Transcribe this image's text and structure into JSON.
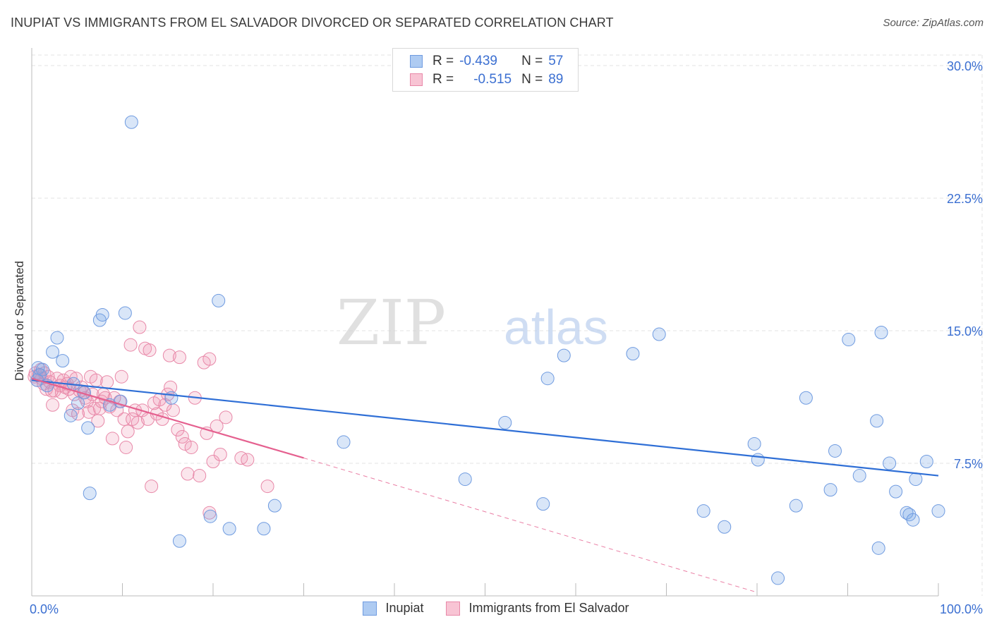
{
  "header": {
    "title": "INUPIAT VS IMMIGRANTS FROM EL SALVADOR DIVORCED OR SEPARATED CORRELATION CHART",
    "source": "Source: ZipAtlas.com"
  },
  "watermark": {
    "zip": "ZIP",
    "atlas": "atlas"
  },
  "legend": {
    "r_label": "R =",
    "n_label": "N =",
    "rows": [
      {
        "series": "Inupiat",
        "r": "-0.439",
        "n": "57",
        "fill": "#aecbf2",
        "stroke": "#6f9be0"
      },
      {
        "series": "Immigrants from El Salvador",
        "r": "-0.515",
        "n": "89",
        "fill": "#f8c4d4",
        "stroke": "#e888a8"
      }
    ]
  },
  "colors": {
    "blue_point_fill": "rgba(120,165,230,0.28)",
    "blue_point_stroke": "#6f9be0",
    "blue_line": "#2f6fd6",
    "pink_point_fill": "rgba(240,150,180,0.25)",
    "pink_point_stroke": "#e888a8",
    "pink_line": "#e5608f",
    "grid": "#e3e3e3",
    "tick_text": "#3b6fd1"
  },
  "chart_data": {
    "type": "scatter",
    "title": "INUPIAT VS IMMIGRANTS FROM EL SALVADOR DIVORCED OR SEPARATED CORRELATION CHART",
    "xlabel": "",
    "ylabel": "Divorced or Separated",
    "xlim": [
      0,
      100
    ],
    "ylim": [
      0,
      30.6
    ],
    "x_tick_labels": [
      "0.0%",
      "100.0%"
    ],
    "y_ticks": [
      7.5,
      15.0,
      22.5,
      30.0
    ],
    "y_tick_labels": [
      "7.5%",
      "15.0%",
      "22.5%",
      "30.0%"
    ],
    "grid": true,
    "legend_position": "top-center",
    "series": [
      {
        "name": "Inupiat",
        "points": [
          [
            0.6,
            12.2
          ],
          [
            0.7,
            12.9
          ],
          [
            1.2,
            12.8
          ],
          [
            1.7,
            11.9
          ],
          [
            2.3,
            13.8
          ],
          [
            2.8,
            14.6
          ],
          [
            3.4,
            13.3
          ],
          [
            4.3,
            10.2
          ],
          [
            4.6,
            12.0
          ],
          [
            5.1,
            10.9
          ],
          [
            5.8,
            11.5
          ],
          [
            6.2,
            9.5
          ],
          [
            6.4,
            5.8
          ],
          [
            7.5,
            15.6
          ],
          [
            7.8,
            15.9
          ],
          [
            8.6,
            10.8
          ],
          [
            9.8,
            11.0
          ],
          [
            10.3,
            16.0
          ],
          [
            11.0,
            26.8
          ],
          [
            15.4,
            11.2
          ],
          [
            16.3,
            3.1
          ],
          [
            19.7,
            4.5
          ],
          [
            20.6,
            16.7
          ],
          [
            21.8,
            3.8
          ],
          [
            25.6,
            3.8
          ],
          [
            26.8,
            5.1
          ],
          [
            34.4,
            8.7
          ],
          [
            47.8,
            6.6
          ],
          [
            52.2,
            9.8
          ],
          [
            56.4,
            5.2
          ],
          [
            56.9,
            12.3
          ],
          [
            58.7,
            13.6
          ],
          [
            66.3,
            13.7
          ],
          [
            69.2,
            14.8
          ],
          [
            74.1,
            4.8
          ],
          [
            76.4,
            3.9
          ],
          [
            79.7,
            8.6
          ],
          [
            80.1,
            7.7
          ],
          [
            82.3,
            1.0
          ],
          [
            84.3,
            5.1
          ],
          [
            85.4,
            11.2
          ],
          [
            88.1,
            6.0
          ],
          [
            88.6,
            8.2
          ],
          [
            90.1,
            14.5
          ],
          [
            91.3,
            6.8
          ],
          [
            93.2,
            9.9
          ],
          [
            93.4,
            2.7
          ],
          [
            93.7,
            14.9
          ],
          [
            94.6,
            7.5
          ],
          [
            95.3,
            5.9
          ],
          [
            96.5,
            4.7
          ],
          [
            96.8,
            4.6
          ],
          [
            97.2,
            4.3
          ],
          [
            97.5,
            6.6
          ],
          [
            98.7,
            7.6
          ],
          [
            100.0,
            4.8
          ],
          [
            0.9,
            12.5
          ]
        ],
        "trendline": {
          "x0": 0,
          "y0": 12.2,
          "x1": 100,
          "y1": 6.8
        }
      },
      {
        "name": "Immigrants from El Salvador",
        "points": [
          [
            0.3,
            12.4
          ],
          [
            0.4,
            12.6
          ],
          [
            0.6,
            12.2
          ],
          [
            0.8,
            12.5
          ],
          [
            1.0,
            12.8
          ],
          [
            1.1,
            12.3
          ],
          [
            1.3,
            12.0
          ],
          [
            1.4,
            12.6
          ],
          [
            1.6,
            11.7
          ],
          [
            1.8,
            12.4
          ],
          [
            2.0,
            12.1
          ],
          [
            2.3,
            10.8
          ],
          [
            2.5,
            11.6
          ],
          [
            2.8,
            12.3
          ],
          [
            3.1,
            11.9
          ],
          [
            3.3,
            11.5
          ],
          [
            3.5,
            12.2
          ],
          [
            3.7,
            11.8
          ],
          [
            3.9,
            12.0
          ],
          [
            4.1,
            11.7
          ],
          [
            4.3,
            12.4
          ],
          [
            4.5,
            10.5
          ],
          [
            4.7,
            11.4
          ],
          [
            4.9,
            12.3
          ],
          [
            5.1,
            10.3
          ],
          [
            5.3,
            11.6
          ],
          [
            5.5,
            11.8
          ],
          [
            5.7,
            11.5
          ],
          [
            5.9,
            11.2
          ],
          [
            6.1,
            11.0
          ],
          [
            6.3,
            10.4
          ],
          [
            6.5,
            12.4
          ],
          [
            6.7,
            11.4
          ],
          [
            6.9,
            10.6
          ],
          [
            7.1,
            12.2
          ],
          [
            7.3,
            9.9
          ],
          [
            7.5,
            10.6
          ],
          [
            7.7,
            11.0
          ],
          [
            7.9,
            11.4
          ],
          [
            8.1,
            11.2
          ],
          [
            8.3,
            12.1
          ],
          [
            8.6,
            10.7
          ],
          [
            8.9,
            8.9
          ],
          [
            9.1,
            11.2
          ],
          [
            9.4,
            10.5
          ],
          [
            9.7,
            11.0
          ],
          [
            9.9,
            12.4
          ],
          [
            10.2,
            10.0
          ],
          [
            10.4,
            8.4
          ],
          [
            10.6,
            9.3
          ],
          [
            10.9,
            14.2
          ],
          [
            11.1,
            10.0
          ],
          [
            11.4,
            10.5
          ],
          [
            11.7,
            9.8
          ],
          [
            11.9,
            15.2
          ],
          [
            12.2,
            10.5
          ],
          [
            12.5,
            14.0
          ],
          [
            12.8,
            10.0
          ],
          [
            13.0,
            13.9
          ],
          [
            13.2,
            6.2
          ],
          [
            13.5,
            10.9
          ],
          [
            13.8,
            10.3
          ],
          [
            14.1,
            11.1
          ],
          [
            14.4,
            10.0
          ],
          [
            14.7,
            10.8
          ],
          [
            15.0,
            11.4
          ],
          [
            15.3,
            11.8
          ],
          [
            15.6,
            10.5
          ],
          [
            15.2,
            13.6
          ],
          [
            16.1,
            9.4
          ],
          [
            16.3,
            13.5
          ],
          [
            16.6,
            9.0
          ],
          [
            16.9,
            8.6
          ],
          [
            17.2,
            6.9
          ],
          [
            17.6,
            8.4
          ],
          [
            18.0,
            11.2
          ],
          [
            18.5,
            6.8
          ],
          [
            19.0,
            13.2
          ],
          [
            19.3,
            9.2
          ],
          [
            19.6,
            13.4
          ],
          [
            19.6,
            4.7
          ],
          [
            20.0,
            7.6
          ],
          [
            20.4,
            9.6
          ],
          [
            20.8,
            8.0
          ],
          [
            21.4,
            10.1
          ],
          [
            23.1,
            7.8
          ],
          [
            23.8,
            7.7
          ],
          [
            26.0,
            6.2
          ],
          [
            2.2,
            11.6
          ]
        ],
        "trendline": {
          "x0": 0,
          "y0": 12.3,
          "x1": 30,
          "y1": 7.8
        },
        "trendline_extension": {
          "x0": 30,
          "y0": 7.8,
          "x1": 80,
          "y1": 0.2
        }
      }
    ]
  }
}
